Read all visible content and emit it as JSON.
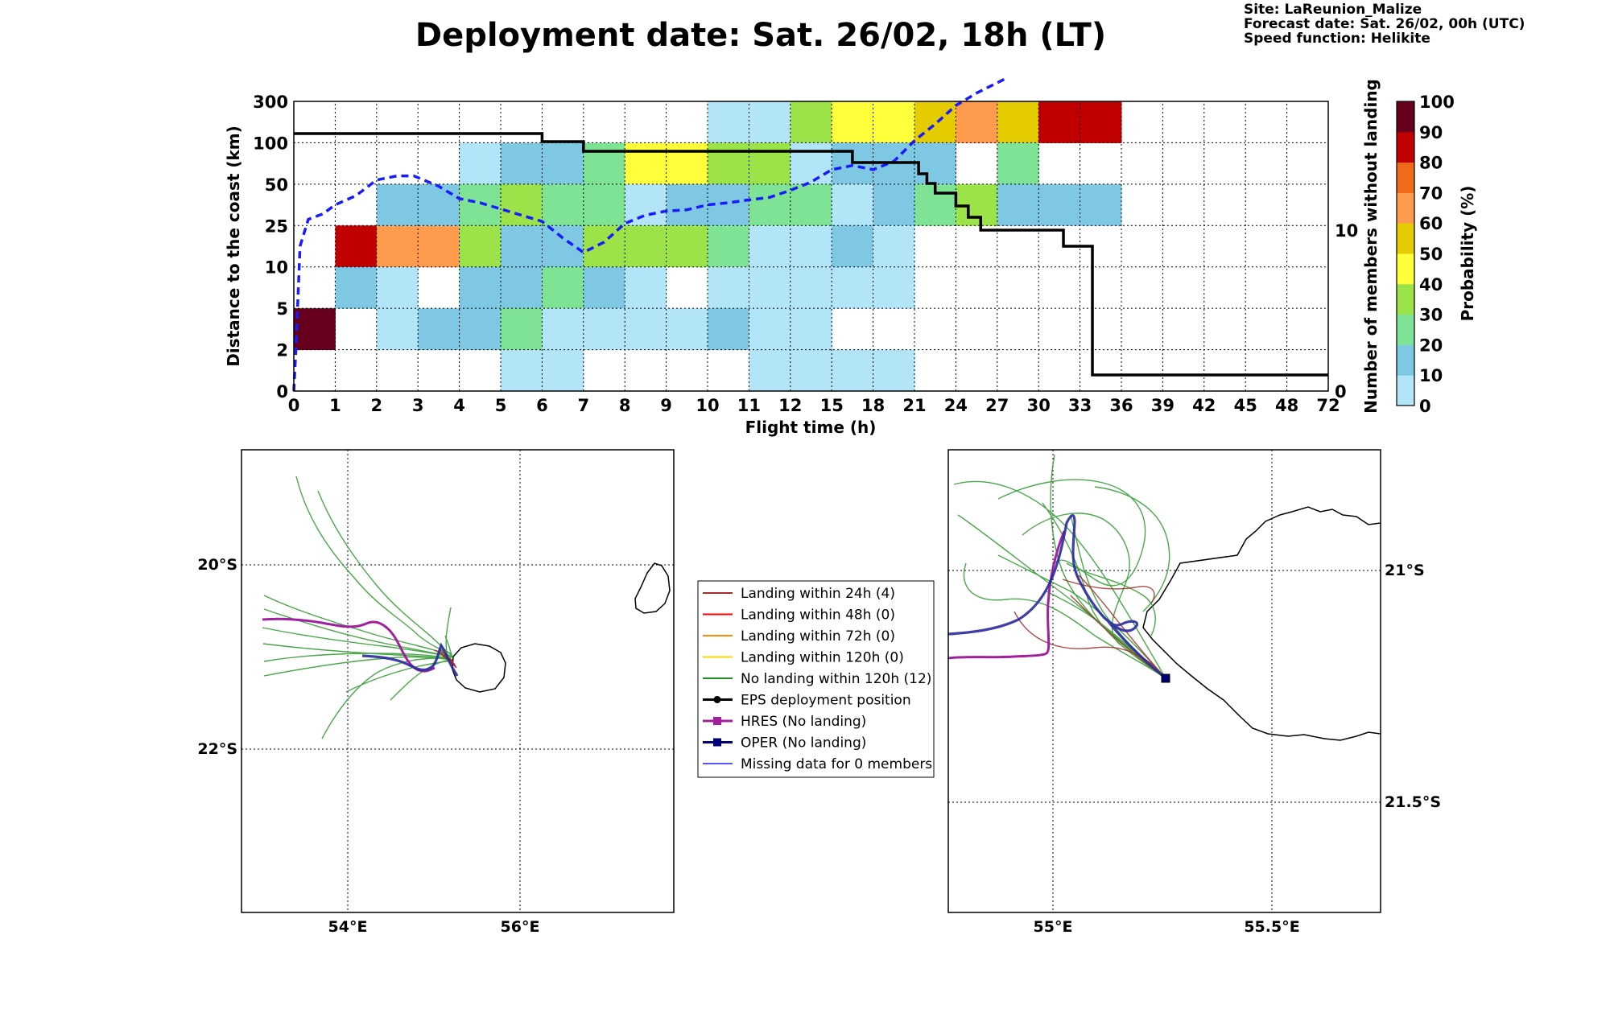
{
  "title": "Deployment date: Sat. 26/02, 18h (LT)",
  "info": {
    "site": "Site: LaReunion_Malize",
    "forecast": "Forecast date: Sat. 26/02, 00h (UTC)",
    "speed": "Speed function: Helikite"
  },
  "colors": {
    "c0": "#b3e5f9",
    "c10": "#7ec8e3",
    "c20": "#7fe396",
    "c30": "#9ce34a",
    "c40": "#ffff3c",
    "c50": "#e4cc00",
    "c60": "#ff9b4c",
    "c70": "#f06a1c",
    "c80": "#c00000",
    "c90": "#67001d",
    "mean_line": "#1a1aff",
    "step_line": "#000000"
  },
  "chart_data": [
    {
      "type": "heatmap",
      "xlabel": "Flight time (h)",
      "ylabel": "Distance to the coast (km)",
      "y2label": "Number of members without landing",
      "x_tick_labels": [
        "0",
        "1",
        "2",
        "3",
        "4",
        "5",
        "6",
        "7",
        "8",
        "9",
        "10",
        "11",
        "12",
        "15",
        "18",
        "21",
        "24",
        "27",
        "30",
        "33",
        "36",
        "39",
        "42",
        "45",
        "48",
        "72"
      ],
      "y_tick_labels": [
        "0",
        "2",
        "5",
        "10",
        "25",
        "50",
        "100",
        "300"
      ],
      "y2_ticks": [
        "0",
        "10"
      ],
      "grid": true,
      "colorbar": {
        "label": "Probability (%)",
        "ticks": [
          "0",
          "10",
          "20",
          "30",
          "40",
          "50",
          "60",
          "70",
          "80",
          "90",
          "100"
        ],
        "colors": [
          "#b3e5f9",
          "#7ec8e3",
          "#7fe396",
          "#9ce34a",
          "#ffff3c",
          "#e4cc00",
          "#ff9b4c",
          "#f06a1c",
          "#c00000",
          "#67001d"
        ]
      },
      "cells": [
        {
          "x": 0,
          "y": 1,
          "p": 95
        },
        {
          "x": 1,
          "y": 3,
          "p": 85
        },
        {
          "x": 1,
          "y": 2,
          "p": 15
        },
        {
          "x": 2,
          "y": 3,
          "p": 65
        },
        {
          "x": 2,
          "y": 4,
          "p": 15
        },
        {
          "x": 2,
          "y": 2,
          "p": 5
        },
        {
          "x": 2,
          "y": 1,
          "p": 5
        },
        {
          "x": 3,
          "y": 3,
          "p": 65
        },
        {
          "x": 3,
          "y": 4,
          "p": 15
        },
        {
          "x": 3,
          "y": 1,
          "p": 15
        },
        {
          "x": 4,
          "y": 5,
          "p": 5
        },
        {
          "x": 4,
          "y": 4,
          "p": 25
        },
        {
          "x": 4,
          "y": 3,
          "p": 35
        },
        {
          "x": 4,
          "y": 2,
          "p": 15
        },
        {
          "x": 4,
          "y": 1,
          "p": 15
        },
        {
          "x": 5,
          "y": 5,
          "p": 15
        },
        {
          "x": 5,
          "y": 4,
          "p": 35
        },
        {
          "x": 5,
          "y": 3,
          "p": 15
        },
        {
          "x": 5,
          "y": 2,
          "p": 15
        },
        {
          "x": 5,
          "y": 1,
          "p": 25
        },
        {
          "x": 5,
          "y": 0,
          "p": 5
        },
        {
          "x": 6,
          "y": 5,
          "p": 15
        },
        {
          "x": 6,
          "y": 4,
          "p": 25
        },
        {
          "x": 6,
          "y": 3,
          "p": 15
        },
        {
          "x": 6,
          "y": 2,
          "p": 25
        },
        {
          "x": 6,
          "y": 1,
          "p": 5
        },
        {
          "x": 6,
          "y": 0,
          "p": 5
        },
        {
          "x": 7,
          "y": 5,
          "p": 25
        },
        {
          "x": 7,
          "y": 4,
          "p": 25
        },
        {
          "x": 7,
          "y": 3,
          "p": 35
        },
        {
          "x": 7,
          "y": 2,
          "p": 15
        },
        {
          "x": 7,
          "y": 1,
          "p": 5
        },
        {
          "x": 8,
          "y": 5,
          "p": 45
        },
        {
          "x": 8,
          "y": 4,
          "p": 5
        },
        {
          "x": 8,
          "y": 3,
          "p": 35
        },
        {
          "x": 8,
          "y": 2,
          "p": 5
        },
        {
          "x": 8,
          "y": 1,
          "p": 5
        },
        {
          "x": 9,
          "y": 5,
          "p": 45
        },
        {
          "x": 9,
          "y": 4,
          "p": 15
        },
        {
          "x": 9,
          "y": 3,
          "p": 35
        },
        {
          "x": 9,
          "y": 1,
          "p": 5
        },
        {
          "x": 10,
          "y": 6,
          "p": 5
        },
        {
          "x": 10,
          "y": 5,
          "p": 35
        },
        {
          "x": 10,
          "y": 4,
          "p": 15
        },
        {
          "x": 10,
          "y": 3,
          "p": 25
        },
        {
          "x": 10,
          "y": 2,
          "p": 5
        },
        {
          "x": 10,
          "y": 1,
          "p": 15
        },
        {
          "x": 11,
          "y": 6,
          "p": 5
        },
        {
          "x": 11,
          "y": 5,
          "p": 35
        },
        {
          "x": 11,
          "y": 4,
          "p": 25
        },
        {
          "x": 11,
          "y": 3,
          "p": 5
        },
        {
          "x": 11,
          "y": 2,
          "p": 5
        },
        {
          "x": 11,
          "y": 1,
          "p": 5
        },
        {
          "x": 11,
          "y": 0,
          "p": 5
        },
        {
          "x": 12,
          "y": 6,
          "p": 35
        },
        {
          "x": 12,
          "y": 5,
          "p": 5
        },
        {
          "x": 12,
          "y": 4,
          "p": 25
        },
        {
          "x": 12,
          "y": 3,
          "p": 5
        },
        {
          "x": 12,
          "y": 2,
          "p": 5
        },
        {
          "x": 12,
          "y": 1,
          "p": 5
        },
        {
          "x": 12,
          "y": 0,
          "p": 5
        },
        {
          "x": 13,
          "y": 6,
          "p": 45
        },
        {
          "x": 13,
          "y": 5,
          "p": 15
        },
        {
          "x": 13,
          "y": 4,
          "p": 5
        },
        {
          "x": 13,
          "y": 3,
          "p": 15
        },
        {
          "x": 13,
          "y": 2,
          "p": 5
        },
        {
          "x": 13,
          "y": 0,
          "p": 5
        },
        {
          "x": 14,
          "y": 6,
          "p": 45
        },
        {
          "x": 14,
          "y": 5,
          "p": 15
        },
        {
          "x": 14,
          "y": 4,
          "p": 15
        },
        {
          "x": 14,
          "y": 3,
          "p": 5
        },
        {
          "x": 14,
          "y": 2,
          "p": 5
        },
        {
          "x": 14,
          "y": 0,
          "p": 5
        },
        {
          "x": 15,
          "y": 6,
          "p": 55
        },
        {
          "x": 15,
          "y": 5,
          "p": 15
        },
        {
          "x": 15,
          "y": 4,
          "p": 25
        },
        {
          "x": 16,
          "y": 6,
          "p": 65
        },
        {
          "x": 16,
          "y": 4,
          "p": 35
        },
        {
          "x": 17,
          "y": 6,
          "p": 55
        },
        {
          "x": 17,
          "y": 5,
          "p": 25
        },
        {
          "x": 17,
          "y": 4,
          "p": 15
        },
        {
          "x": 18,
          "y": 6,
          "p": 85
        },
        {
          "x": 18,
          "y": 4,
          "p": 15
        },
        {
          "x": 19,
          "y": 6,
          "p": 85
        },
        {
          "x": 19,
          "y": 4,
          "p": 15
        }
      ],
      "mean_distance_line": [
        [
          0,
          0
        ],
        [
          0.05,
          1
        ],
        [
          0.15,
          3.5
        ],
        [
          0.35,
          4.15
        ],
        [
          0.7,
          4.28
        ],
        [
          1,
          4.5
        ],
        [
          1.5,
          4.72
        ],
        [
          2,
          5.1
        ],
        [
          2.5,
          5.2
        ],
        [
          2.9,
          5.2
        ],
        [
          3.5,
          4.95
        ],
        [
          4,
          4.65
        ],
        [
          4.5,
          4.55
        ],
        [
          5,
          4.4
        ],
        [
          5.5,
          4.25
        ],
        [
          6,
          4.1
        ],
        [
          6.5,
          3.7
        ],
        [
          7,
          3.35
        ],
        [
          7.5,
          3.6
        ],
        [
          8,
          4.05
        ],
        [
          8.5,
          4.25
        ],
        [
          9,
          4.35
        ],
        [
          9.5,
          4.38
        ],
        [
          10,
          4.5
        ],
        [
          10.5,
          4.55
        ],
        [
          11,
          4.62
        ],
        [
          11.5,
          4.68
        ],
        [
          12,
          4.85
        ],
        [
          12.5,
          5.05
        ],
        [
          13,
          5.35
        ],
        [
          13.5,
          5.45
        ],
        [
          14,
          5.35
        ],
        [
          14.5,
          5.55
        ],
        [
          15,
          6.05
        ],
        [
          15.5,
          6.45
        ],
        [
          16,
          6.9
        ],
        [
          16.5,
          7.2
        ],
        [
          17,
          7.45
        ],
        [
          17.2,
          7.55
        ]
      ],
      "members_without_landing": [
        [
          0,
          16
        ],
        [
          6,
          16
        ],
        [
          6,
          15.5
        ],
        [
          7,
          15.5
        ],
        [
          7,
          14.9
        ],
        [
          13.5,
          14.9
        ],
        [
          13.5,
          14.2
        ],
        [
          15.1,
          14.2
        ],
        [
          15.1,
          13.5
        ],
        [
          15.3,
          13.5
        ],
        [
          15.3,
          12.9
        ],
        [
          15.5,
          12.9
        ],
        [
          15.5,
          12.3
        ],
        [
          16,
          12.3
        ],
        [
          16,
          11.5
        ],
        [
          16.3,
          11.5
        ],
        [
          16.3,
          10.8
        ],
        [
          16.6,
          10.8
        ],
        [
          16.6,
          10
        ],
        [
          18.6,
          10
        ],
        [
          18.6,
          9
        ],
        [
          19.3,
          9
        ],
        [
          19.3,
          1
        ],
        [
          25,
          1
        ]
      ]
    },
    {
      "type": "map",
      "lat_labels": [
        "20°S",
        "22°S"
      ],
      "lon_labels": [
        "54°E",
        "56°E"
      ]
    },
    {
      "type": "map",
      "lat_labels": [
        "21°S",
        "21.5°S"
      ],
      "lon_labels": [
        "55°E",
        "55.5°E"
      ]
    }
  ],
  "legend": [
    {
      "label": "Landing within 24h (4)",
      "color": "#a52a2a",
      "marker": ""
    },
    {
      "label": "Landing within 48h (0)",
      "color": "#ff0000",
      "marker": ""
    },
    {
      "label": "Landing within 72h (0)",
      "color": "#ff8c00",
      "marker": ""
    },
    {
      "label": "Landing within 120h (0)",
      "color": "#ffd700",
      "marker": ""
    },
    {
      "label": "No landing within 120h (12)",
      "color": "#228b22",
      "marker": ""
    },
    {
      "label": "EPS deployment position",
      "color": "#000000",
      "marker": "circle"
    },
    {
      "label": "HRES (No landing)",
      "color": "#a020a0",
      "marker": "square"
    },
    {
      "label": "OPER (No landing)",
      "color": "#00007a",
      "marker": "square"
    },
    {
      "label": "Missing data for 0 members",
      "color": "#5555ff",
      "marker": ""
    }
  ]
}
